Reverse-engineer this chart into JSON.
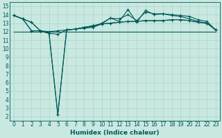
{
  "xlabel": "Humidex (Indice chaleur)",
  "ylabel": "",
  "bg_color": "#c8e8e0",
  "grid_color": "#b0d8d0",
  "line_color": "#005858",
  "xlim": [
    -0.5,
    23.5
  ],
  "ylim": [
    1.5,
    15.5
  ],
  "xticks": [
    0,
    1,
    2,
    3,
    4,
    5,
    6,
    7,
    8,
    9,
    10,
    11,
    12,
    13,
    14,
    15,
    16,
    17,
    18,
    19,
    20,
    21,
    22,
    23
  ],
  "yticks": [
    2,
    3,
    4,
    5,
    6,
    7,
    8,
    9,
    10,
    11,
    12,
    13,
    14,
    15
  ],
  "series": [
    [
      13.9,
      13.5,
      13.1,
      12.1,
      11.8,
      11.7,
      12.2,
      12.3,
      12.5,
      12.7,
      12.9,
      13.0,
      13.1,
      13.2,
      13.2,
      13.3,
      13.3,
      13.3,
      13.4,
      13.4,
      13.3,
      13.1,
      13.0,
      12.2
    ],
    [
      13.9,
      13.5,
      13.1,
      12.1,
      12.0,
      12.1,
      12.2,
      12.3,
      12.5,
      12.7,
      12.9,
      13.0,
      13.1,
      13.2,
      13.2,
      13.3,
      13.3,
      13.3,
      13.4,
      13.4,
      13.3,
      13.1,
      13.0,
      12.2
    ],
    [
      13.9,
      13.5,
      12.1,
      12.1,
      11.8,
      2.2,
      12.2,
      12.3,
      12.4,
      12.5,
      12.9,
      13.6,
      13.2,
      14.6,
      13.1,
      14.5,
      14.0,
      14.1,
      13.9,
      13.8,
      13.5,
      13.2,
      13.0,
      12.2
    ],
    [
      13.9,
      13.5,
      12.1,
      12.1,
      11.8,
      2.2,
      12.2,
      12.3,
      12.5,
      12.6,
      13.0,
      13.6,
      13.5,
      14.0,
      13.3,
      14.3,
      14.1,
      14.1,
      14.0,
      13.9,
      13.8,
      13.4,
      13.2,
      12.2
    ],
    [
      12.0,
      12.0,
      12.0,
      12.0,
      12.0,
      12.0,
      12.0,
      12.0,
      12.0,
      12.0,
      12.0,
      12.0,
      12.0,
      12.0,
      12.0,
      12.0,
      12.0,
      12.0,
      12.0,
      12.0,
      12.0,
      12.0,
      12.0,
      12.0
    ]
  ],
  "has_markers": [
    true,
    true,
    true,
    true,
    false
  ],
  "linewidths": [
    0.8,
    0.8,
    0.8,
    0.8,
    0.8
  ],
  "tick_fontsize": 5.5,
  "xlabel_fontsize": 6.5,
  "marker_size": 2.5
}
